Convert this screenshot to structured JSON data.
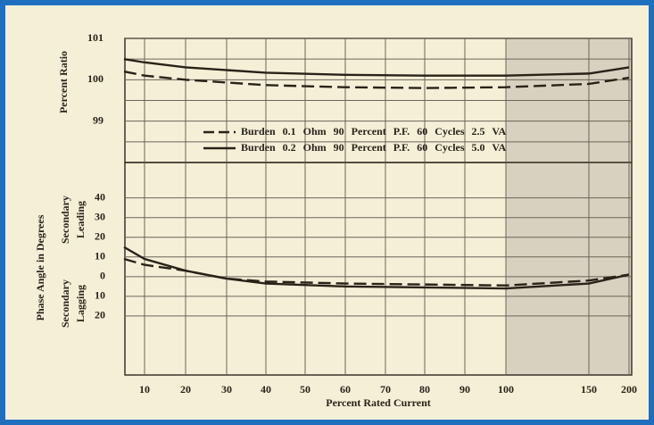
{
  "chart_data": [
    {
      "type": "line",
      "ylabel": "Percent Ratio",
      "x": [
        5,
        10,
        20,
        40,
        60,
        80,
        100,
        150,
        200
      ],
      "series": [
        {
          "name": "Burden 0.1 Ohm 90 Percent P.F. 60 Cycles 2.5 VA",
          "color": "#2a2218",
          "dash": true,
          "values": [
            100.2,
            100.1,
            100.0,
            99.87,
            99.82,
            99.8,
            99.82,
            99.9,
            100.05
          ]
        },
        {
          "name": "Burden 0.2 Ohm 90 Percent P.F. 60 Cycles 5.0 VA",
          "color": "#2a2218",
          "dash": false,
          "values": [
            100.5,
            100.42,
            100.3,
            100.17,
            100.12,
            100.1,
            100.1,
            100.15,
            100.3
          ]
        }
      ],
      "ylim": [
        98,
        101
      ],
      "yticks": [
        99,
        100,
        101
      ],
      "shaded_xlim": [
        100,
        200
      ],
      "grid": true
    },
    {
      "type": "line",
      "ylabel": "Phase Angle in Degrees",
      "leading_label": [
        "Secondary",
        "Leading"
      ],
      "lagging_label": [
        "Secondary",
        "Lagging"
      ],
      "xlabel": "Percent Rated Current",
      "x": [
        5,
        10,
        20,
        30,
        40,
        60,
        80,
        100,
        150,
        200
      ],
      "series": [
        {
          "name": "Burden 0.1 Ohm 90 Percent P.F. 60 Cycles 2.5 VA",
          "color": "#2a2218",
          "dash": true,
          "values": [
            9,
            6,
            3,
            -1,
            -2.5,
            -3.5,
            -4,
            -4.5,
            -2,
            1
          ]
        },
        {
          "name": "Burden 0.2 Ohm 90 Percent P.F. 60 Cycles 5.0 VA",
          "color": "#2a2218",
          "dash": false,
          "values": [
            15,
            9,
            3,
            -1,
            -3.5,
            -5,
            -5.5,
            -6,
            -3.5,
            1
          ]
        }
      ],
      "ylim": [
        -50,
        58
      ],
      "yticks": [
        40,
        30,
        20,
        10,
        0,
        {
          "value": -10,
          "label": "10"
        },
        {
          "value": -20,
          "label": "20"
        }
      ],
      "xticks": [
        10,
        20,
        30,
        40,
        50,
        60,
        70,
        80,
        90,
        100,
        150,
        200
      ],
      "shaded_xlim": [
        100,
        200
      ],
      "grid": true
    }
  ]
}
